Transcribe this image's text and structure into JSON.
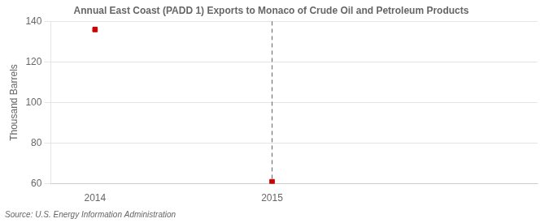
{
  "chart_data": {
    "type": "scatter",
    "title": "Annual East Coast (PADD 1) Exports to Monaco of Crude Oil and Petroleum Products",
    "ylabel": "Thousand Barrels",
    "source": "Source: U.S. Energy Information Administration",
    "x": [
      2014,
      2015
    ],
    "values": [
      136,
      61
    ],
    "color": "#cc0000",
    "marker": "square",
    "vline": 2015,
    "xlim": [
      2013.75,
      2016.5
    ],
    "xticks": [
      2014,
      2015
    ],
    "ylim": [
      60,
      140
    ],
    "yticks": [
      60,
      80,
      100,
      120,
      140
    ],
    "grid": "y"
  }
}
